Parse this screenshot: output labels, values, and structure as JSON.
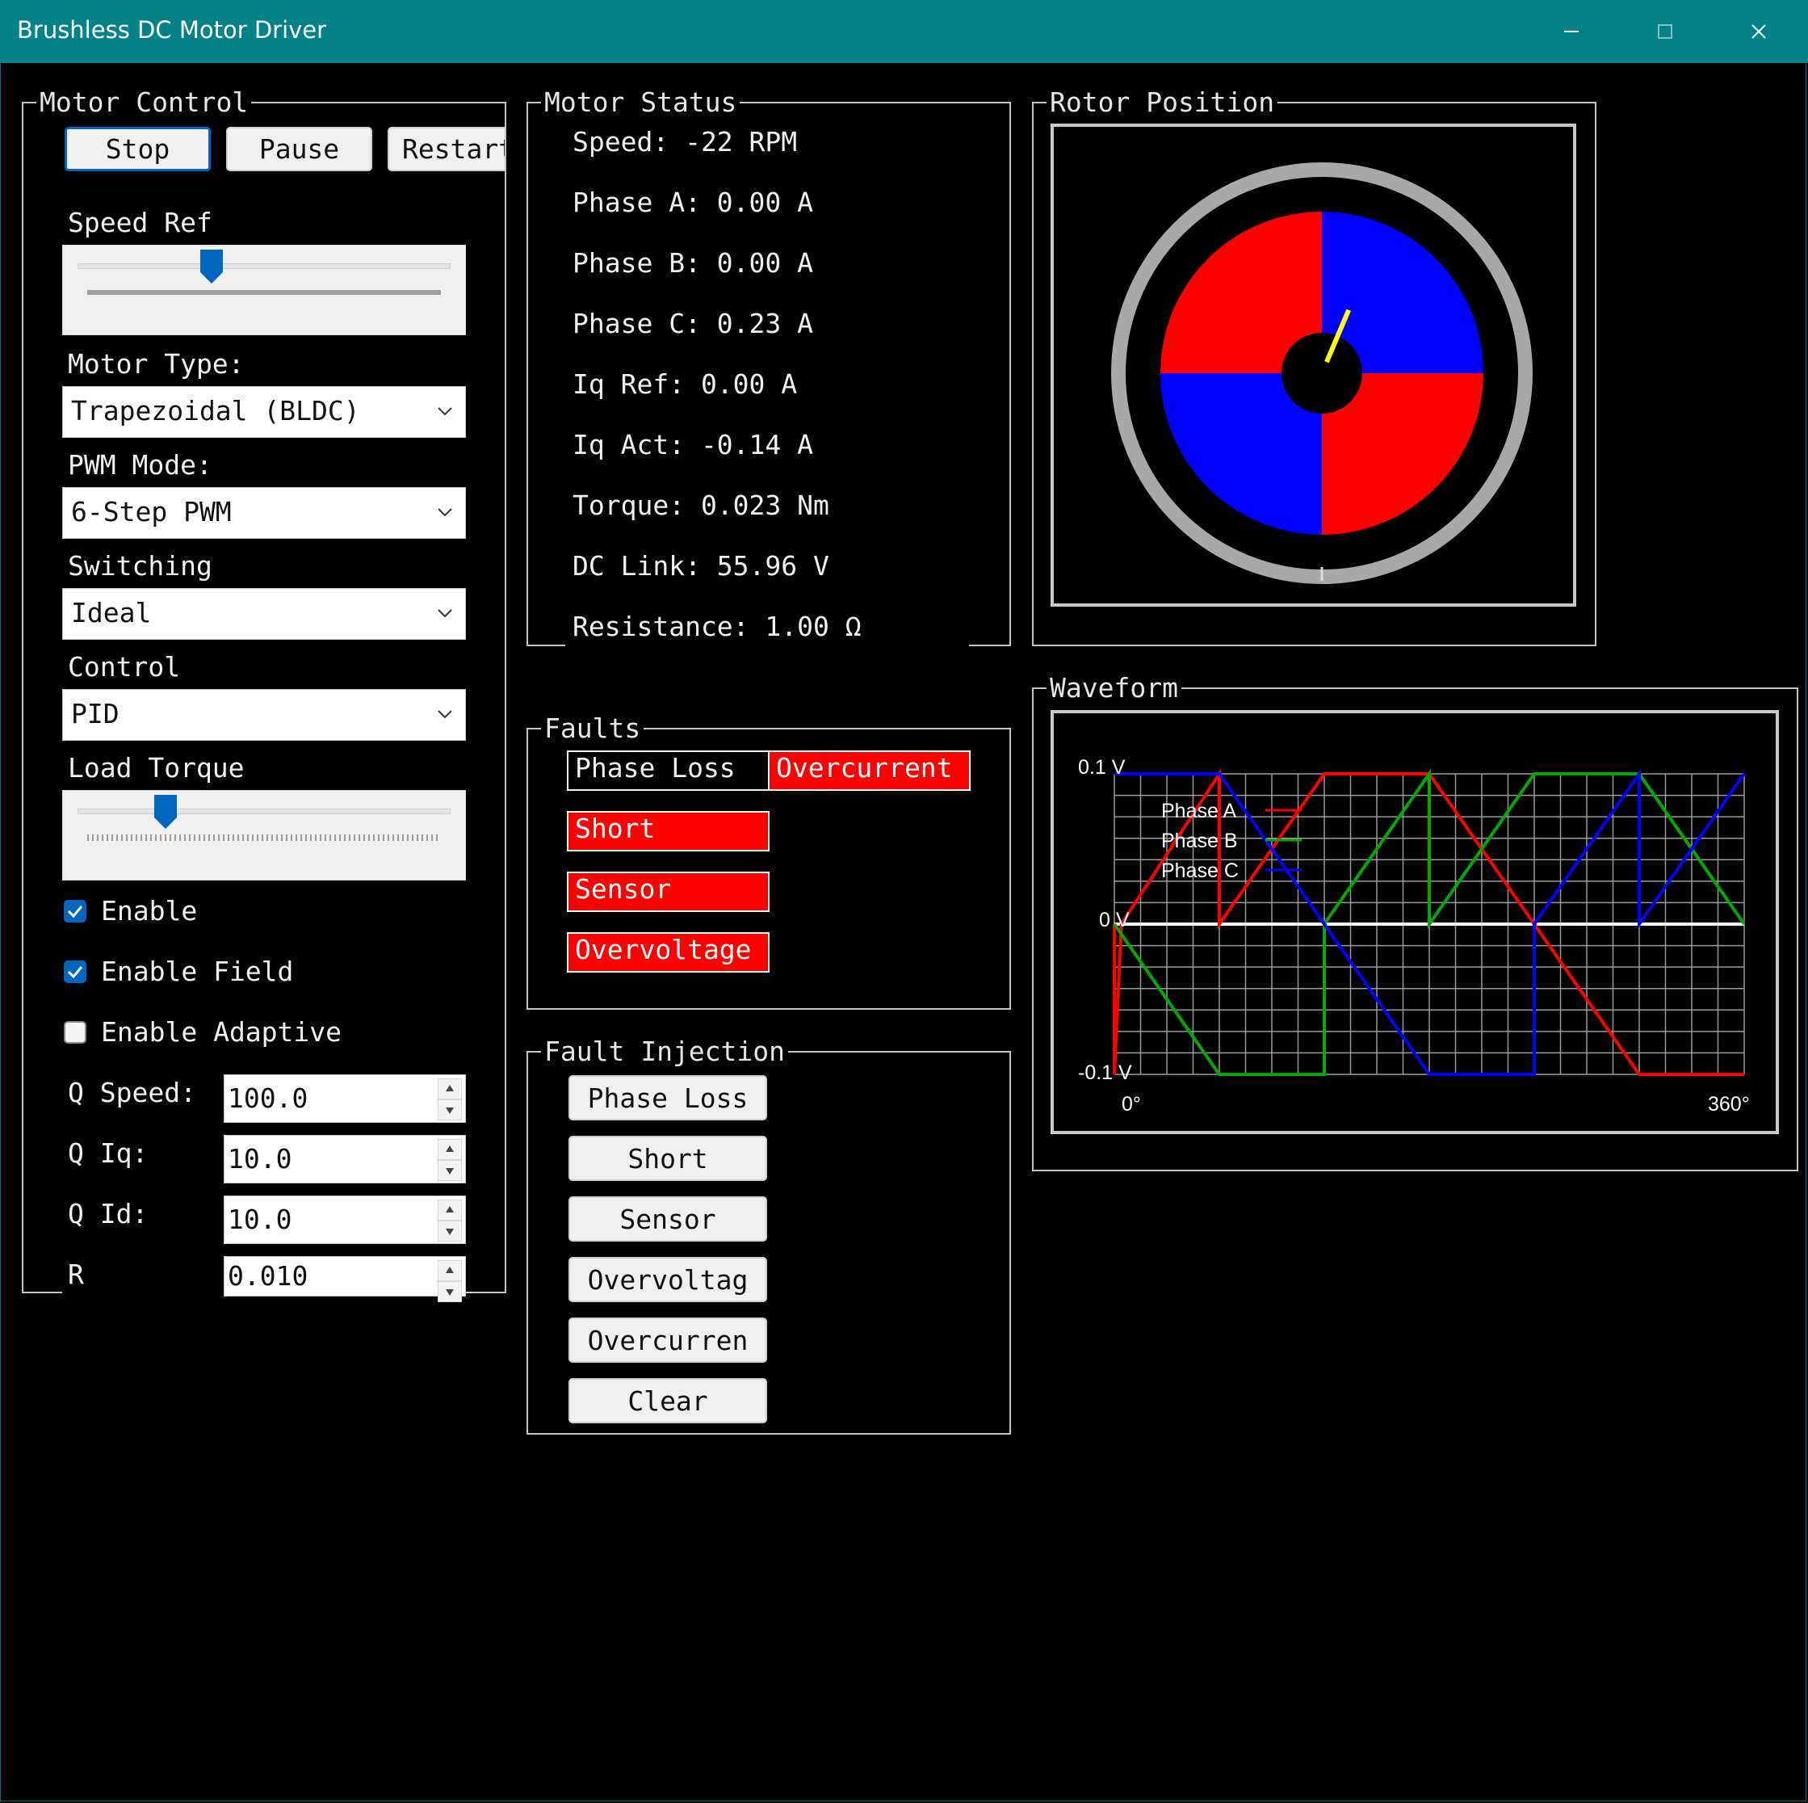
{
  "window": {
    "title": "Brushless DC Motor Driver"
  },
  "motor_control": {
    "title": "Motor Control",
    "buttons": {
      "stop": "Stop",
      "pause": "Pause",
      "restart": "Restart"
    },
    "speed_ref": {
      "label": "Speed Ref",
      "value_fraction": 0.35
    },
    "motor_type": {
      "label": "Motor Type:",
      "value": "Trapezoidal (BLDC)"
    },
    "pwm_mode": {
      "label": "PWM Mode:",
      "value": "6-Step PWM"
    },
    "switching": {
      "label": "Switching",
      "value": "Ideal"
    },
    "control": {
      "label": "Control",
      "value": "PID"
    },
    "load_torque": {
      "label": "Load Torque",
      "value_fraction": 0.22
    },
    "checkboxes": [
      {
        "label": "Enable",
        "checked": true
      },
      {
        "label": "Enable Field",
        "checked": true
      },
      {
        "label": "Enable Adaptive",
        "checked": false
      }
    ],
    "params": [
      {
        "label": "Q Speed:",
        "value": "100.0"
      },
      {
        "label": "Q Iq:",
        "value": "10.0"
      },
      {
        "label": "Q Id:",
        "value": "10.0"
      },
      {
        "label": "R",
        "value": "0.010"
      }
    ]
  },
  "motor_status": {
    "title": "Motor Status",
    "lines": [
      "Speed: -22 RPM",
      "Phase A: 0.00 A",
      "Phase B: 0.00 A",
      "Phase C: 0.23 A",
      "Iq Ref: 0.00 A",
      "Iq Act: -0.14 A",
      "Torque: 0.023 Nm",
      "DC Link: 55.96 V",
      "Resistance: 1.00 Ω"
    ]
  },
  "rotor_position": {
    "title": "Rotor Position",
    "angle_deg": 23,
    "colors": {
      "pole_a": "#ff0000",
      "pole_b": "#0000ff",
      "needle": "#ffff00"
    }
  },
  "faults": {
    "title": "Faults",
    "items": [
      {
        "label": "Phase Loss",
        "active": false
      },
      {
        "label": "Overcurrent",
        "active": true
      },
      {
        "label": "Short",
        "active": true
      },
      {
        "label": "Sensor",
        "active": true
      },
      {
        "label": "Overvoltage",
        "active": true
      }
    ]
  },
  "fault_injection": {
    "title": "Fault Injection",
    "buttons": [
      "Phase Loss",
      "Short",
      "Sensor",
      "Overvoltag",
      "Overcurren",
      "Clear"
    ]
  },
  "waveform": {
    "title": "Waveform",
    "chart_data": {
      "type": "line",
      "x_label_min": "0°",
      "x_label_max": "360°",
      "y_ticks": [
        "0.1 V",
        "0 V",
        "-0.1 V"
      ],
      "xlim": [
        0,
        360
      ],
      "ylim": [
        -0.1,
        0.1
      ],
      "grid": true,
      "legend_position": "top-left",
      "series": [
        {
          "name": "Phase A",
          "color": "#ff0000",
          "points": [
            [
              0,
              0
            ],
            [
              0,
              -0.1
            ],
            [
              4,
              0
            ],
            [
              60,
              0.1
            ],
            [
              60,
              0
            ],
            [
              120,
              0.1
            ],
            [
              180,
              0.1
            ],
            [
              240,
              0
            ],
            [
              300,
              -0.1
            ],
            [
              360,
              -0.1
            ]
          ]
        },
        {
          "name": "Phase B",
          "color": "#00aa00",
          "points": [
            [
              0,
              0
            ],
            [
              60,
              -0.1
            ],
            [
              120,
              -0.1
            ],
            [
              120,
              0
            ],
            [
              180,
              0.1
            ],
            [
              180,
              0
            ],
            [
              240,
              0.1
            ],
            [
              300,
              0.1
            ],
            [
              360,
              0
            ]
          ]
        },
        {
          "name": "Phase C",
          "color": "#0000ff",
          "points": [
            [
              0,
              0.1
            ],
            [
              60,
              0.1
            ],
            [
              120,
              0
            ],
            [
              180,
              -0.1
            ],
            [
              240,
              -0.1
            ],
            [
              240,
              0
            ],
            [
              300,
              0.1
            ],
            [
              300,
              0
            ],
            [
              360,
              0.1
            ]
          ]
        }
      ]
    }
  }
}
